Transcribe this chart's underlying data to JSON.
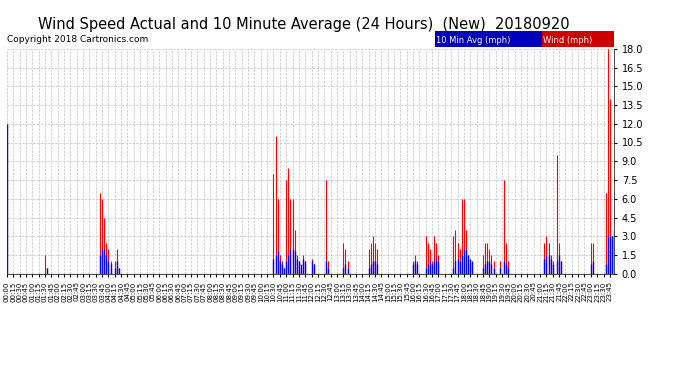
{
  "title": "Wind Speed Actual and 10 Minute Average (24 Hours)  (New)  20180920",
  "copyright": "Copyright 2018 Cartronics.com",
  "legend_blue_label": "10 Min Avg (mph)",
  "legend_red_label": "Wind (mph)",
  "y_min": 0.0,
  "y_max": 18.0,
  "y_ticks": [
    0.0,
    1.5,
    3.0,
    4.5,
    6.0,
    7.5,
    9.0,
    10.5,
    12.0,
    13.5,
    15.0,
    16.5,
    18.0
  ],
  "blue_color": "#0000ff",
  "red_color": "#ff0000",
  "bg_color": "#ffffff",
  "legend_blue_bg": "#0000bb",
  "legend_red_bg": "#cc0000",
  "grid_color": "#bbbbbb",
  "title_fontsize": 10.5,
  "copyright_fontsize": 6.5,
  "wind_spikes": [
    {
      "t": 0,
      "wind": 12.0,
      "avg": 12.0
    },
    {
      "t": 90,
      "wind": 1.5,
      "avg": 0.0
    },
    {
      "t": 95,
      "wind": 0.5,
      "avg": 0.5
    },
    {
      "t": 220,
      "wind": 6.5,
      "avg": 1.5
    },
    {
      "t": 225,
      "wind": 6.0,
      "avg": 2.0
    },
    {
      "t": 230,
      "wind": 4.5,
      "avg": 2.0
    },
    {
      "t": 235,
      "wind": 2.5,
      "avg": 1.5
    },
    {
      "t": 240,
      "wind": 2.0,
      "avg": 1.0
    },
    {
      "t": 245,
      "wind": 1.0,
      "avg": 0.8
    },
    {
      "t": 255,
      "wind": 1.0,
      "avg": 0.5
    },
    {
      "t": 260,
      "wind": 2.0,
      "avg": 1.0
    },
    {
      "t": 265,
      "wind": 0.5,
      "avg": 0.5
    },
    {
      "t": 630,
      "wind": 8.0,
      "avg": 1.2
    },
    {
      "t": 635,
      "wind": 11.0,
      "avg": 1.5
    },
    {
      "t": 640,
      "wind": 6.0,
      "avg": 1.8
    },
    {
      "t": 645,
      "wind": 1.5,
      "avg": 1.0
    },
    {
      "t": 650,
      "wind": 1.0,
      "avg": 0.8
    },
    {
      "t": 655,
      "wind": 0.5,
      "avg": 0.5
    },
    {
      "t": 660,
      "wind": 7.5,
      "avg": 1.0
    },
    {
      "t": 665,
      "wind": 8.5,
      "avg": 1.5
    },
    {
      "t": 670,
      "wind": 6.0,
      "avg": 2.0
    },
    {
      "t": 675,
      "wind": 6.0,
      "avg": 2.0
    },
    {
      "t": 680,
      "wind": 3.5,
      "avg": 1.8
    },
    {
      "t": 685,
      "wind": 1.5,
      "avg": 1.2
    },
    {
      "t": 690,
      "wind": 1.0,
      "avg": 1.0
    },
    {
      "t": 695,
      "wind": 0.5,
      "avg": 0.8
    },
    {
      "t": 700,
      "wind": 1.5,
      "avg": 1.2
    },
    {
      "t": 705,
      "wind": 1.0,
      "avg": 1.0
    },
    {
      "t": 720,
      "wind": 1.2,
      "avg": 1.0
    },
    {
      "t": 725,
      "wind": 0.8,
      "avg": 0.8
    },
    {
      "t": 755,
      "wind": 7.5,
      "avg": 1.0
    },
    {
      "t": 760,
      "wind": 1.0,
      "avg": 0.5
    },
    {
      "t": 795,
      "wind": 2.5,
      "avg": 0.5
    },
    {
      "t": 800,
      "wind": 2.0,
      "avg": 0.8
    },
    {
      "t": 805,
      "wind": 1.0,
      "avg": 0.5
    },
    {
      "t": 855,
      "wind": 2.0,
      "avg": 0.5
    },
    {
      "t": 860,
      "wind": 2.5,
      "avg": 0.8
    },
    {
      "t": 865,
      "wind": 3.0,
      "avg": 1.0
    },
    {
      "t": 870,
      "wind": 2.5,
      "avg": 1.0
    },
    {
      "t": 875,
      "wind": 2.0,
      "avg": 0.8
    },
    {
      "t": 960,
      "wind": 1.0,
      "avg": 0.8
    },
    {
      "t": 965,
      "wind": 1.5,
      "avg": 1.0
    },
    {
      "t": 970,
      "wind": 1.0,
      "avg": 0.8
    },
    {
      "t": 990,
      "wind": 3.0,
      "avg": 0.5
    },
    {
      "t": 995,
      "wind": 2.5,
      "avg": 0.8
    },
    {
      "t": 1000,
      "wind": 2.0,
      "avg": 1.0
    },
    {
      "t": 1005,
      "wind": 1.0,
      "avg": 0.8
    },
    {
      "t": 1010,
      "wind": 3.0,
      "avg": 1.0
    },
    {
      "t": 1015,
      "wind": 2.5,
      "avg": 1.2
    },
    {
      "t": 1020,
      "wind": 1.5,
      "avg": 1.0
    },
    {
      "t": 1055,
      "wind": 3.0,
      "avg": 0.5
    },
    {
      "t": 1060,
      "wind": 3.5,
      "avg": 1.0
    },
    {
      "t": 1065,
      "wind": 2.5,
      "avg": 1.2
    },
    {
      "t": 1070,
      "wind": 2.0,
      "avg": 1.0
    },
    {
      "t": 1075,
      "wind": 6.0,
      "avg": 1.5
    },
    {
      "t": 1080,
      "wind": 6.0,
      "avg": 2.0
    },
    {
      "t": 1085,
      "wind": 3.5,
      "avg": 2.0
    },
    {
      "t": 1090,
      "wind": 1.5,
      "avg": 1.5
    },
    {
      "t": 1095,
      "wind": 1.0,
      "avg": 1.2
    },
    {
      "t": 1100,
      "wind": 0.5,
      "avg": 1.0
    },
    {
      "t": 1125,
      "wind": 1.5,
      "avg": 0.5
    },
    {
      "t": 1130,
      "wind": 2.5,
      "avg": 0.8
    },
    {
      "t": 1135,
      "wind": 2.5,
      "avg": 1.0
    },
    {
      "t": 1140,
      "wind": 2.0,
      "avg": 1.0
    },
    {
      "t": 1145,
      "wind": 1.5,
      "avg": 0.8
    },
    {
      "t": 1150,
      "wind": 1.0,
      "avg": 0.5
    },
    {
      "t": 1165,
      "wind": 1.0,
      "avg": 0.5
    },
    {
      "t": 1175,
      "wind": 7.5,
      "avg": 1.0
    },
    {
      "t": 1180,
      "wind": 2.5,
      "avg": 0.8
    },
    {
      "t": 1185,
      "wind": 1.0,
      "avg": 0.5
    },
    {
      "t": 1270,
      "wind": 2.5,
      "avg": 1.2
    },
    {
      "t": 1275,
      "wind": 3.0,
      "avg": 1.5
    },
    {
      "t": 1280,
      "wind": 2.5,
      "avg": 1.5
    },
    {
      "t": 1285,
      "wind": 1.5,
      "avg": 1.2
    },
    {
      "t": 1290,
      "wind": 1.0,
      "avg": 0.8
    },
    {
      "t": 1300,
      "wind": 9.5,
      "avg": 1.0
    },
    {
      "t": 1305,
      "wind": 2.5,
      "avg": 1.5
    },
    {
      "t": 1310,
      "wind": 1.0,
      "avg": 1.0
    },
    {
      "t": 1380,
      "wind": 2.5,
      "avg": 0.8
    },
    {
      "t": 1385,
      "wind": 2.5,
      "avg": 1.0
    },
    {
      "t": 1415,
      "wind": 6.5,
      "avg": 0.8
    },
    {
      "t": 1420,
      "wind": 18.0,
      "avg": 3.0
    },
    {
      "t": 1425,
      "wind": 14.0,
      "avg": 3.0
    },
    {
      "t": 1430,
      "wind": 3.0,
      "avg": 3.0
    },
    {
      "t": 1435,
      "wind": 3.0,
      "avg": 3.5
    }
  ]
}
